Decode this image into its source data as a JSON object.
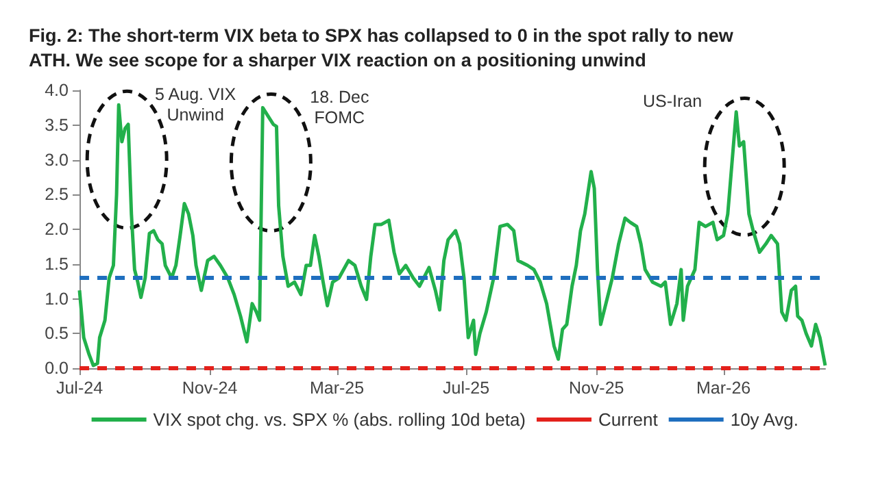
{
  "chart_data": {
    "type": "line",
    "title": "Fig. 2: The short-term VIX beta to SPX has collapsed to 0 in the spot rally to new\nATH. We see scope for a sharper VIX reaction on a positioning unwind",
    "x": [
      "2024-07-01",
      "2024-07-05",
      "2024-07-10",
      "2024-07-14",
      "2024-07-18",
      "2024-07-20",
      "2024-07-25",
      "2024-07-29",
      "2024-08-02",
      "2024-08-05",
      "2024-08-07",
      "2024-08-10",
      "2024-08-13",
      "2024-08-16",
      "2024-08-19",
      "2024-08-22",
      "2024-08-25",
      "2024-08-28",
      "2024-09-01",
      "2024-09-05",
      "2024-09-09",
      "2024-09-13",
      "2024-09-17",
      "2024-09-20",
      "2024-09-26",
      "2024-09-30",
      "2024-10-04",
      "2024-10-08",
      "2024-10-12",
      "2024-10-16",
      "2024-10-19",
      "2024-10-24",
      "2024-10-30",
      "2024-11-05",
      "2024-11-11",
      "2024-11-18",
      "2024-11-24",
      "2024-11-30",
      "2024-12-06",
      "2024-12-11",
      "2024-12-15",
      "2024-12-18",
      "2024-12-21",
      "2024-12-26",
      "2024-12-31",
      "2025-01-03",
      "2025-01-05",
      "2025-01-09",
      "2025-01-14",
      "2025-01-20",
      "2025-01-26",
      "2025-01-31",
      "2025-02-04",
      "2025-02-08",
      "2025-02-12",
      "2025-02-16",
      "2025-02-20",
      "2025-02-25",
      "2025-03-03",
      "2025-03-12",
      "2025-03-18",
      "2025-03-24",
      "2025-03-29",
      "2025-04-02",
      "2025-04-06",
      "2025-04-12",
      "2025-04-19",
      "2025-04-24",
      "2025-04-29",
      "2025-05-05",
      "2025-05-12",
      "2025-05-18",
      "2025-05-27",
      "2025-06-02",
      "2025-06-06",
      "2025-06-10",
      "2025-06-14",
      "2025-06-21",
      "2025-06-25",
      "2025-06-29",
      "2025-07-03",
      "2025-07-08",
      "2025-07-10",
      "2025-07-14",
      "2025-07-20",
      "2025-07-27",
      "2025-08-02",
      "2025-08-09",
      "2025-08-15",
      "2025-08-19",
      "2025-08-28",
      "2025-09-03",
      "2025-09-09",
      "2025-09-15",
      "2025-09-22",
      "2025-09-26",
      "2025-09-30",
      "2025-10-04",
      "2025-10-09",
      "2025-10-13",
      "2025-10-17",
      "2025-10-21",
      "2025-10-27",
      "2025-10-30",
      "2025-11-02",
      "2025-11-05",
      "2025-11-09",
      "2025-11-16",
      "2025-11-22",
      "2025-11-28",
      "2025-12-03",
      "2025-12-09",
      "2025-12-13",
      "2025-12-17",
      "2025-12-24",
      "2026-01-01",
      "2026-01-05",
      "2026-01-10",
      "2026-01-16",
      "2026-01-20",
      "2026-01-22",
      "2026-01-26",
      "2026-02-02",
      "2026-02-06",
      "2026-02-12",
      "2026-02-19",
      "2026-02-23",
      "2026-03-01",
      "2026-03-05",
      "2026-03-10",
      "2026-03-13",
      "2026-03-16",
      "2026-03-20",
      "2026-03-25",
      "2026-03-29",
      "2026-04-04",
      "2026-04-10",
      "2026-04-15",
      "2026-04-21",
      "2026-04-25",
      "2026-04-29",
      "2026-05-04",
      "2026-05-08",
      "2026-05-10",
      "2026-05-14",
      "2026-05-18",
      "2026-05-23",
      "2026-05-27",
      "2026-05-31",
      "2026-06-03",
      "2026-06-05"
    ],
    "series": [
      {
        "name": "VIX spot chg. vs. SPX % (abs. rolling 10d beta)",
        "color": "#22b04b",
        "values": [
          1.12,
          0.44,
          0.2,
          0.04,
          0.07,
          0.44,
          0.69,
          1.3,
          1.48,
          2.5,
          3.79,
          3.26,
          3.45,
          3.51,
          2.22,
          1.42,
          1.24,
          1.02,
          1.3,
          1.94,
          1.98,
          1.85,
          1.79,
          1.48,
          1.3,
          1.48,
          1.91,
          2.37,
          2.22,
          1.91,
          1.48,
          1.12,
          1.55,
          1.61,
          1.48,
          1.3,
          1.06,
          0.75,
          0.38,
          0.93,
          0.81,
          0.69,
          3.75,
          3.63,
          3.51,
          3.48,
          2.34,
          1.61,
          1.18,
          1.24,
          1.06,
          1.48,
          1.48,
          1.91,
          1.61,
          1.24,
          0.9,
          1.24,
          1.3,
          1.55,
          1.48,
          1.18,
          0.99,
          1.61,
          2.07,
          2.07,
          2.13,
          1.67,
          1.36,
          1.48,
          1.3,
          1.18,
          1.45,
          1.12,
          0.84,
          1.55,
          1.85,
          1.98,
          1.79,
          1.3,
          0.44,
          0.69,
          0.2,
          0.5,
          0.81,
          1.3,
          2.04,
          2.07,
          1.98,
          1.55,
          1.48,
          1.42,
          1.24,
          0.93,
          0.32,
          0.13,
          0.56,
          0.63,
          1.18,
          1.48,
          1.98,
          2.22,
          2.83,
          2.59,
          1.42,
          0.63,
          0.87,
          1.3,
          1.79,
          2.16,
          2.1,
          2.04,
          1.79,
          1.42,
          1.24,
          1.18,
          1.24,
          0.63,
          0.93,
          1.42,
          0.69,
          1.18,
          1.42,
          2.1,
          2.04,
          2.1,
          1.85,
          1.91,
          2.22,
          3.14,
          3.69,
          3.2,
          3.26,
          2.22,
          1.98,
          1.67,
          1.79,
          1.91,
          1.79,
          0.81,
          0.69,
          1.12,
          1.18,
          0.75,
          0.69,
          0.5,
          0.32,
          0.63,
          0.44,
          0.2,
          0.04
        ]
      },
      {
        "name": "Current",
        "color": "#e3211c",
        "line_style": "dashed",
        "x": [
          "2024-07-01",
          "2026-06-05"
        ],
        "values": [
          0,
          0
        ]
      },
      {
        "name": "10y Avg.",
        "color": "#1f6fbf",
        "line_style": "dashed",
        "x": [
          "2024-07-01",
          "2026-06-05"
        ],
        "values": [
          1.3,
          1.3
        ]
      }
    ],
    "xlim": [
      "2024-07-01",
      "2026-06-05"
    ],
    "xticks": [
      {
        "value": "2024-07-01",
        "label": "Jul-24"
      },
      {
        "value": "2024-11-01",
        "label": "Nov-24"
      },
      {
        "value": "2025-03-01",
        "label": "Mar-25"
      },
      {
        "value": "2025-07-01",
        "label": "Jul-25"
      },
      {
        "value": "2025-11-01",
        "label": "Nov-25"
      },
      {
        "value": "2026-03-01",
        "label": "Mar-26"
      }
    ],
    "ylim": [
      0,
      4
    ],
    "yticks": [
      {
        "value": 0,
        "label": "0.0"
      },
      {
        "value": 0.5,
        "label": "0.5"
      },
      {
        "value": 1,
        "label": "1.0"
      },
      {
        "value": 1.5,
        "label": "1.5"
      },
      {
        "value": 2,
        "label": "2.0"
      },
      {
        "value": 2.5,
        "label": "2.5"
      },
      {
        "value": 3,
        "label": "3.0"
      },
      {
        "value": 3.5,
        "label": "3.5"
      },
      {
        "value": 4,
        "label": "4.0"
      }
    ],
    "annotations": [
      {
        "text": "5 Aug. VIX\nUnwind",
        "x": "2024-08-07",
        "y": 3.79
      },
      {
        "text": "18. Dec\nFOMC",
        "x": "2024-12-21",
        "y": 3.75
      },
      {
        "text": "US-Iran",
        "x": "2026-03-13",
        "y": 3.69
      }
    ],
    "grid": false,
    "legend": "bottom",
    "marker": "none",
    "line_style": "solid"
  }
}
